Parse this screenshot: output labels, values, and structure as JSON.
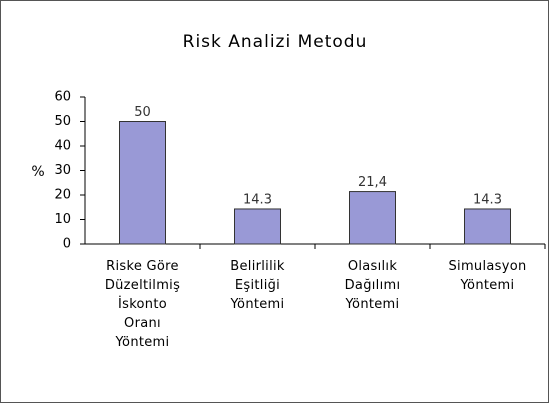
{
  "chart_data": {
    "type": "bar",
    "title": "Risk Analizi Metodu",
    "y_label": "%",
    "categories": [
      "Riske Göre\nDüzeltilmiş\nİskonto\nOranı\nYöntemi",
      "Belirlilik\nEşitliği\nYöntemi",
      "Olasılık\nDağılımı\nYöntemi",
      "Simulasyon\nYöntemi"
    ],
    "values": [
      50,
      14.3,
      21.4,
      14.3
    ],
    "value_labels": [
      "50",
      "14.3",
      "21,4",
      "14.3"
    ],
    "color": "#9999d6",
    "ylim": [
      0,
      60
    ],
    "yticks": [
      0,
      10,
      20,
      30,
      40,
      50,
      60
    ],
    "grid": false
  }
}
